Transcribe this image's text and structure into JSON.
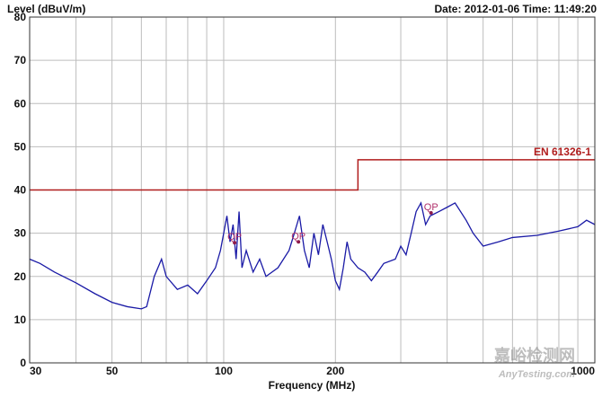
{
  "chart_data": {
    "type": "line",
    "y_label": "Level (dBuV/m)",
    "header_right": "Date: 2012-01-06  Time: 11:49:20",
    "x_label": "Frequency (MHz)",
    "xlog": true,
    "xlim": [
      30,
      1000
    ],
    "ylim": [
      0,
      80
    ],
    "xticks": [
      30,
      50,
      100,
      200,
      1000
    ],
    "x_gridlines": [
      40,
      60,
      70,
      80,
      90,
      300,
      400,
      500,
      600,
      700,
      800,
      900
    ],
    "yticks": [
      0,
      10,
      20,
      30,
      40,
      50,
      60,
      70,
      80
    ],
    "grid": true,
    "x": [
      30,
      32,
      35,
      40,
      45,
      50,
      55,
      60,
      62,
      65,
      68,
      70,
      75,
      80,
      85,
      90,
      95,
      98,
      100,
      102,
      104,
      106,
      108,
      110,
      112,
      115,
      120,
      125,
      130,
      140,
      150,
      155,
      160,
      165,
      170,
      175,
      180,
      185,
      190,
      195,
      200,
      205,
      210,
      215,
      220,
      230,
      240,
      250,
      260,
      270,
      290,
      300,
      310,
      320,
      330,
      340,
      350,
      360,
      380,
      400,
      420,
      450,
      470,
      500,
      550,
      600,
      700,
      800,
      900,
      950,
      1000
    ],
    "series": [
      {
        "name": "Level",
        "color": "#1a1aa6",
        "values": [
          24,
          23,
          21,
          18.5,
          16,
          14,
          13,
          12.5,
          13,
          20,
          24,
          20,
          17,
          18,
          16,
          19,
          22,
          26,
          30,
          34,
          28,
          32,
          24,
          35,
          22,
          26,
          21,
          24,
          20,
          22,
          26,
          30,
          34,
          26,
          22,
          30,
          25,
          32,
          28,
          24,
          19,
          17,
          22,
          28,
          24,
          22,
          21,
          19,
          21,
          23,
          24,
          27,
          25,
          30,
          35,
          37,
          32,
          34,
          35,
          36,
          37,
          33,
          30,
          27,
          28,
          29,
          29.5,
          30.5,
          31.5,
          33,
          32
        ]
      }
    ],
    "limit": {
      "name": "EN 61326-1",
      "color": "#b01c1c",
      "x": [
        30,
        230,
        230,
        1000
      ],
      "values": [
        40,
        40,
        47,
        47
      ]
    },
    "markers": [
      {
        "label": "QP",
        "x": 107,
        "y": 27.8
      },
      {
        "label": "QP",
        "x": 159,
        "y": 28
      },
      {
        "label": "QP",
        "x": 362,
        "y": 34.7
      }
    ],
    "watermark": [
      "嘉峪检测网",
      "AnyTesting.com"
    ]
  }
}
